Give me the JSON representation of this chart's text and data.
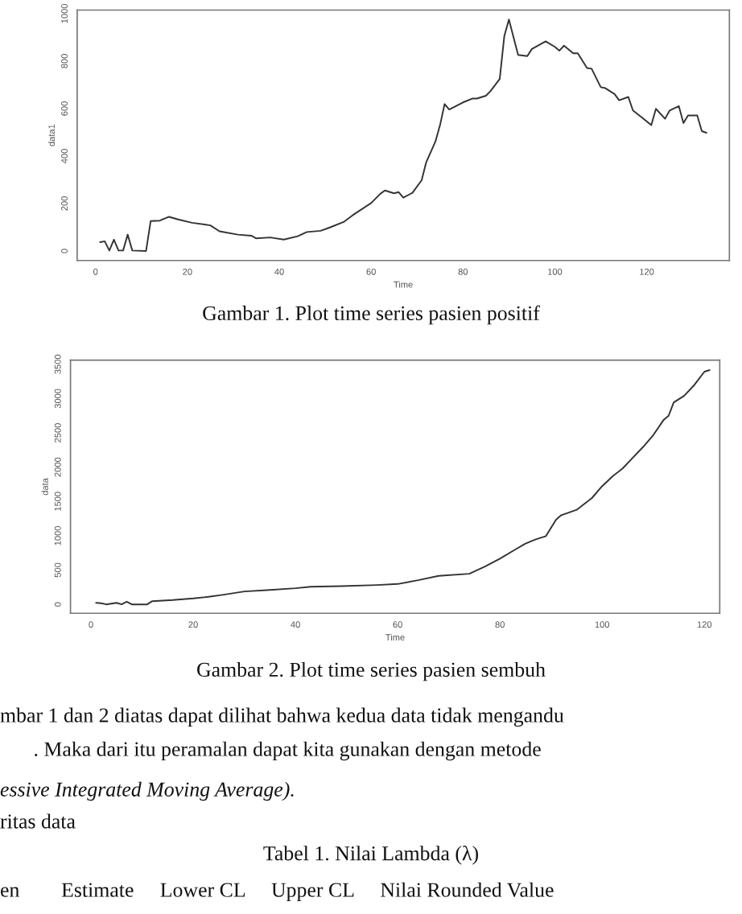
{
  "chart_data": [
    {
      "type": "line",
      "xlabel": "Time",
      "ylabel": "data1",
      "xlim": [
        -4,
        138
      ],
      "ylim": [
        -40,
        1015
      ],
      "xticks": [
        0,
        20,
        40,
        60,
        80,
        100,
        120
      ],
      "yticks": [
        0,
        200,
        400,
        600,
        800,
        1000
      ],
      "grid": false,
      "legend": false,
      "x": [
        1,
        2,
        3,
        4,
        5,
        6,
        7,
        8,
        11,
        12,
        14,
        16,
        18,
        21,
        25,
        27,
        31,
        34,
        35,
        38,
        41,
        44,
        46,
        49,
        51,
        54,
        56,
        60,
        62,
        63,
        65,
        66,
        67,
        69,
        71,
        72,
        74,
        75,
        76,
        77,
        80,
        82,
        83,
        85,
        86,
        88,
        89,
        90,
        91,
        92,
        94,
        95,
        98,
        100,
        101,
        102,
        104,
        105,
        107,
        108,
        110,
        111,
        113,
        114,
        116,
        117,
        119,
        121,
        122,
        124,
        125,
        127,
        128,
        129,
        131,
        132,
        133
      ],
      "series": [
        {
          "color": "#333333",
          "values": [
            37,
            41,
            2,
            48,
            2,
            2,
            69,
            2,
            0,
            126,
            128,
            144,
            133,
            119,
            108,
            83,
            69,
            64,
            53,
            57,
            48,
            62,
            80,
            85,
            99,
            122,
            151,
            202,
            241,
            255,
            243,
            248,
            225,
            245,
            298,
            374,
            461,
            530,
            619,
            596,
            626,
            642,
            642,
            654,
            674,
            725,
            906,
            975,
            901,
            826,
            821,
            851,
            883,
            860,
            844,
            865,
            833,
            833,
            771,
            768,
            690,
            686,
            661,
            635,
            649,
            592,
            562,
            530,
            599,
            557,
            592,
            610,
            539,
            571,
            571,
            505,
            498
          ]
        }
      ],
      "annotations": [
        "Gambar 1. Plot time series pasien positif"
      ]
    },
    {
      "type": "line",
      "xlabel": "Time",
      "ylabel": "data",
      "xlim": [
        -4,
        123
      ],
      "ylim": [
        -130,
        3560
      ],
      "xticks": [
        0,
        20,
        40,
        60,
        80,
        100,
        120
      ],
      "yticks": [
        0,
        500,
        1000,
        1500,
        2000,
        2500,
        3000,
        3500
      ],
      "grid": false,
      "legend": false,
      "x": [
        1,
        2,
        3,
        5,
        6,
        7,
        8,
        11,
        12,
        16,
        20,
        23,
        26,
        30,
        35,
        40,
        43,
        49,
        56,
        60,
        64,
        68,
        74,
        77,
        80,
        83,
        85,
        87,
        89,
        91,
        92,
        95,
        98,
        100,
        102,
        104,
        106,
        108,
        110,
        112,
        113,
        114,
        116,
        118,
        120,
        121
      ],
      "series": [
        {
          "color": "#333333",
          "values": [
            23,
            16,
            0,
            23,
            0,
            39,
            0,
            0,
            47,
            63,
            86,
            110,
            141,
            188,
            211,
            235,
            258,
            266,
            282,
            297,
            352,
            415,
            446,
            548,
            666,
            799,
            885,
            948,
            995,
            1237,
            1300,
            1378,
            1550,
            1723,
            1864,
            1981,
            2138,
            2294,
            2467,
            2686,
            2749,
            2944,
            3038,
            3195,
            3391,
            3414
          ]
        }
      ],
      "annotations": [
        "Gambar 2. Plot time series pasien sembuh",
        "mbar 1 dan 2 diatas dapat dilihat bahwa kedua data tidak mengandu",
        ". Maka dari itu peramalan dapat kita gunakan dengan metode",
        "essive Integrated Moving Average).",
        "ritas data",
        "Tabel 1. Nilai Lambda (λ)",
        "en        Estimate     Lower CL     Upper CL     Nilai Rounded Value"
      ]
    }
  ]
}
